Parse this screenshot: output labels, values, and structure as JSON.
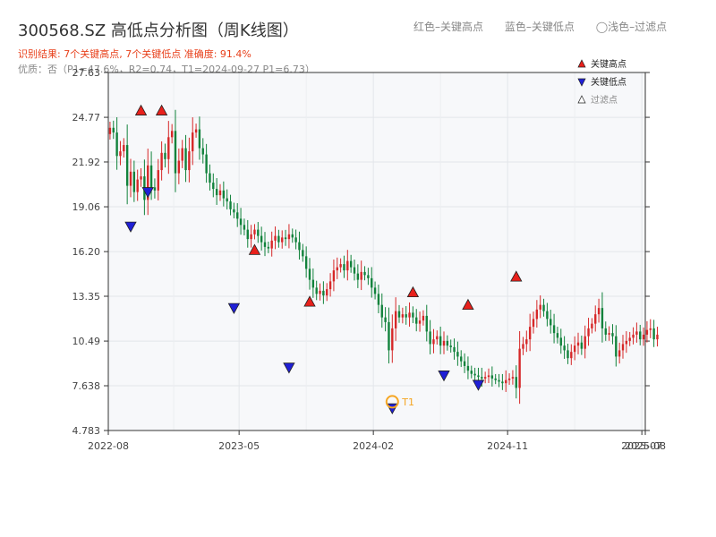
{
  "header": {
    "title": "300568.SZ 高低点分析图（周K线图）",
    "summary": "识别结果: 7个关键高点, 7个关键低点   准确度: 91.4%",
    "quality": "优质：否（P1=47.6%，R2=0.74，T1=2024-09-27 P1=6.73）"
  },
  "top_legend": {
    "high_label": "红色–关键高点",
    "low_label": "蓝色–关键低点",
    "filtered_label": "◯浅色–过滤点"
  },
  "colors": {
    "up": "#d62728",
    "down": "#11823b",
    "high_marker": "#e8201b",
    "low_marker": "#1f1fd6",
    "summary_text": "#e8401b",
    "t1_marker": "#f5a623"
  },
  "chart_data": {
    "type": "candlestick",
    "ylim": [
      4.783,
      27.63
    ],
    "y_ticks": [
      "27.63",
      "24.77",
      "21.92",
      "19.06",
      "16.20",
      "13.35",
      "10.49",
      "7.638",
      "4.783"
    ],
    "x_ticks": [
      "2022-08",
      "2023-05",
      "2024-02",
      "2024-11",
      "2025-07",
      "2025-08"
    ],
    "x_count": 156,
    "x_tick_index": [
      0,
      38,
      77,
      116,
      155,
      156
    ],
    "legend": {
      "placement": "top-right",
      "items": [
        {
          "label": "关键高点",
          "type": "high"
        },
        {
          "label": "关键低点",
          "type": "low"
        },
        {
          "label": "过滤点",
          "type": "filtered"
        }
      ]
    },
    "weekly_close": [
      24.1,
      23.8,
      22.3,
      22.6,
      23.0,
      20.4,
      21.3,
      20.0,
      20.8,
      21.0,
      19.5,
      21.7,
      20.3,
      20.1,
      21.4,
      22.5,
      22.1,
      23.5,
      23.9,
      21.2,
      22.0,
      22.8,
      21.4,
      22.6,
      23.8,
      24.0,
      22.8,
      22.4,
      21.2,
      20.6,
      20.2,
      19.8,
      20.1,
      19.6,
      19.4,
      18.9,
      18.7,
      18.3,
      17.9,
      17.6,
      17.0,
      17.3,
      17.6,
      17.2,
      16.8,
      16.5,
      16.4,
      16.9,
      17.2,
      16.8,
      17.1,
      17.0,
      17.3,
      17.1,
      16.8,
      16.3,
      15.9,
      15.1,
      14.4,
      13.9,
      13.5,
      13.7,
      13.4,
      13.8,
      14.3,
      15.0,
      15.2,
      15.4,
      15.0,
      15.6,
      15.2,
      14.8,
      14.4,
      14.9,
      14.7,
      14.5,
      13.9,
      13.5,
      12.8,
      12.0,
      11.7,
      9.9,
      11.3,
      12.4,
      12.0,
      12.2,
      12.0,
      12.3,
      12.0,
      11.6,
      11.8,
      12.1,
      11.1,
      10.3,
      10.6,
      10.8,
      10.2,
      10.5,
      10.2,
      10.1,
      9.8,
      9.5,
      9.2,
      8.9,
      8.6,
      8.4,
      8.3,
      8.2,
      8.1,
      8.2,
      8.3,
      8.1,
      8.0,
      7.9,
      7.8,
      8.0,
      8.1,
      8.2,
      7.5,
      10.0,
      10.3,
      10.6,
      11.4,
      11.9,
      12.5,
      12.8,
      12.4,
      11.9,
      11.5,
      11.0,
      10.7,
      10.2,
      9.9,
      9.4,
      9.8,
      10.2,
      10.4,
      10.0,
      10.8,
      11.3,
      11.6,
      12.2,
      12.6,
      11.3,
      10.9,
      11.0,
      10.8,
      9.5,
      9.9,
      10.3,
      10.5,
      10.7,
      10.9,
      11.1,
      10.6,
      10.9,
      11.2,
      11.3,
      10.6,
      10.9
    ],
    "key_points": [
      {
        "type": "high",
        "index": 9,
        "price": 24.8
      },
      {
        "type": "low",
        "index": 6,
        "price": 18.2
      },
      {
        "type": "low",
        "index": 11,
        "price": 20.4
      },
      {
        "type": "high",
        "index": 15,
        "price": 24.8
      },
      {
        "type": "low",
        "index": 36,
        "price": 13.0
      },
      {
        "type": "high",
        "index": 42,
        "price": 15.9
      },
      {
        "type": "low",
        "index": 52,
        "price": 9.2
      },
      {
        "type": "high",
        "index": 58,
        "price": 12.6
      },
      {
        "type": "low",
        "index": 82,
        "price": 6.6
      },
      {
        "type": "high",
        "index": 88,
        "price": 13.2
      },
      {
        "type": "low",
        "index": 97,
        "price": 8.7
      },
      {
        "type": "high",
        "index": 104,
        "price": 12.4
      },
      {
        "type": "low",
        "index": 107,
        "price": 8.1
      },
      {
        "type": "high",
        "index": 118,
        "price": 14.2
      }
    ],
    "t1": {
      "index": 82,
      "price": 6.73,
      "label": "T1"
    }
  }
}
